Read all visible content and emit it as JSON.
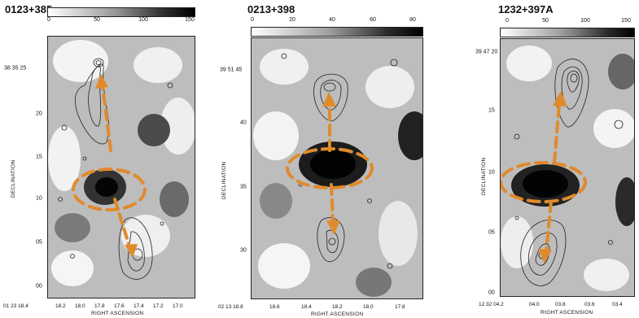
{
  "panels": [
    {
      "title": "0123+385",
      "colorbar_ticks": [
        "0",
        "50",
        "100",
        "150"
      ],
      "ra_origin": "01 23 18.4",
      "ra_ticks": [
        "18.2",
        "18.0",
        "17.8",
        "17.6",
        "17.4",
        "17.2",
        "17.0"
      ],
      "dec_origin": "38 35 25",
      "dec_ticks": [
        "20",
        "15",
        "10",
        "05",
        "00"
      ],
      "xlabel": "RIGHT ASCENSION",
      "ylabel": "DECLINATION"
    },
    {
      "title": "0213+398",
      "colorbar_ticks": [
        "0",
        "20",
        "40",
        "60",
        "80"
      ],
      "ra_origin": "02 13 18.8",
      "ra_ticks": [
        "18.6",
        "18.4",
        "18.2",
        "18.0",
        "17.8"
      ],
      "dec_origin": "39 51 45",
      "dec_ticks": [
        "40",
        "35",
        "30"
      ],
      "xlabel": "RIGHT ASCENSION",
      "ylabel": "DECLINATION"
    },
    {
      "title": "1232+397A",
      "colorbar_ticks": [
        "0",
        "50",
        "100",
        "150"
      ],
      "ra_origin": "12 32 04.2",
      "ra_ticks": [
        "04.0",
        "03.8",
        "03.6",
        "03.4"
      ],
      "dec_origin": "39 47 20",
      "dec_ticks": [
        "15",
        "10",
        "05",
        "00"
      ],
      "xlabel": "RIGHT ASCENSION",
      "ylabel": "DECLINATION"
    }
  ],
  "colors": {
    "overlay": "#e08a2c",
    "contour": "#222222",
    "background": "#bcbcbc"
  }
}
